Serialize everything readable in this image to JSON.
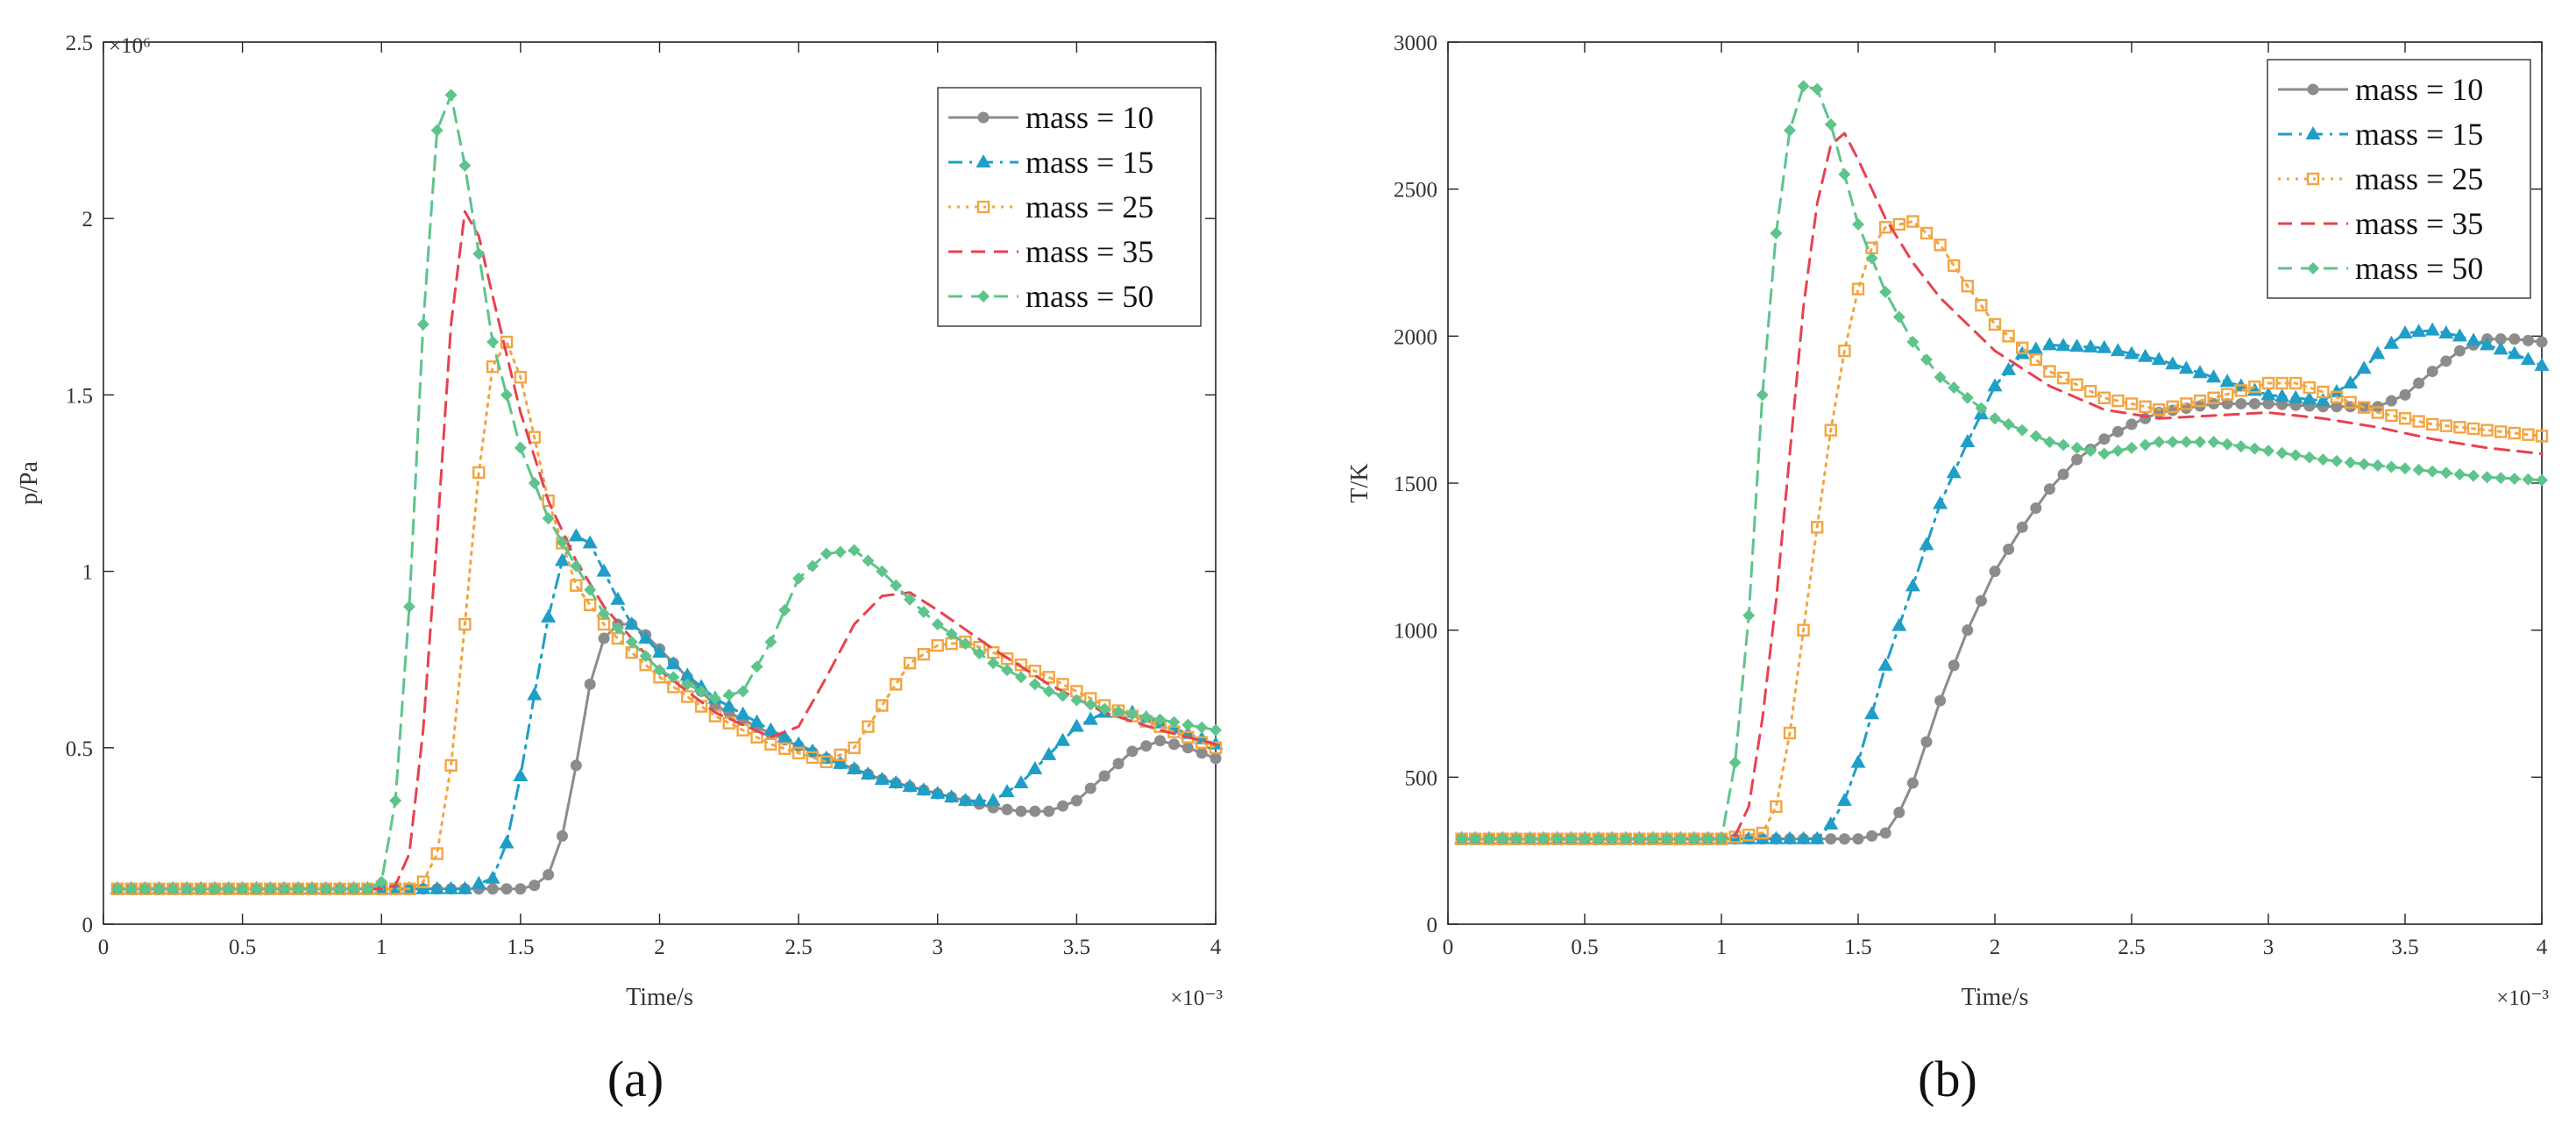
{
  "chart_data": [
    {
      "type": "line",
      "panel_label": "(a)",
      "xlabel": "Time/s",
      "ylabel": "p/Pa",
      "x_exponent": "×10⁻³",
      "y_exponent": "×10⁶",
      "xlim": [
        0,
        4
      ],
      "ylim": [
        0,
        2.5
      ],
      "xticks": [
        "0",
        "0.5",
        "1",
        "1.5",
        "2",
        "2.5",
        "3",
        "3.5",
        "4"
      ],
      "yticks": [
        "0",
        "0.5",
        "1",
        "1.5",
        "2",
        "2.5"
      ],
      "legend_position": "top-right",
      "series": [
        {
          "name": "mass = 10",
          "color": "#8c8c8c",
          "marker": "circle",
          "dash": "solid",
          "x": [
            0.05,
            0.5,
            1.0,
            1.4,
            1.5,
            1.55,
            1.6,
            1.65,
            1.7,
            1.75,
            1.8,
            1.85,
            1.9,
            1.95,
            2.0,
            2.1,
            2.2,
            2.4,
            2.6,
            2.8,
            3.0,
            3.1,
            3.2,
            3.3,
            3.4,
            3.5,
            3.6,
            3.7,
            3.8,
            3.9,
            4.0
          ],
          "y": [
            0.1,
            0.1,
            0.1,
            0.1,
            0.1,
            0.11,
            0.14,
            0.25,
            0.45,
            0.68,
            0.81,
            0.85,
            0.85,
            0.82,
            0.78,
            0.7,
            0.62,
            0.54,
            0.47,
            0.41,
            0.37,
            0.35,
            0.33,
            0.32,
            0.32,
            0.35,
            0.42,
            0.49,
            0.52,
            0.5,
            0.47
          ]
        },
        {
          "name": "mass = 15",
          "color": "#1f9ec7",
          "marker": "triangle",
          "dash": "dashdot",
          "x": [
            0.05,
            0.5,
            1.0,
            1.3,
            1.4,
            1.45,
            1.5,
            1.55,
            1.6,
            1.65,
            1.7,
            1.75,
            1.8,
            1.85,
            1.9,
            2.0,
            2.2,
            2.4,
            2.6,
            2.8,
            3.0,
            3.1,
            3.2,
            3.3,
            3.4,
            3.5,
            3.6,
            3.7,
            3.8,
            3.9,
            4.0
          ],
          "y": [
            0.1,
            0.1,
            0.1,
            0.1,
            0.13,
            0.23,
            0.42,
            0.65,
            0.87,
            1.03,
            1.1,
            1.08,
            1.0,
            0.92,
            0.85,
            0.77,
            0.64,
            0.55,
            0.47,
            0.41,
            0.37,
            0.35,
            0.35,
            0.4,
            0.48,
            0.56,
            0.6,
            0.6,
            0.57,
            0.54,
            0.51
          ]
        },
        {
          "name": "mass = 25",
          "color": "#f2a541",
          "marker": "square",
          "dash": "dotted",
          "x": [
            0.05,
            0.5,
            1.0,
            1.1,
            1.15,
            1.2,
            1.25,
            1.3,
            1.35,
            1.4,
            1.45,
            1.5,
            1.55,
            1.6,
            1.7,
            1.8,
            1.9,
            2.0,
            2.2,
            2.4,
            2.6,
            2.7,
            2.8,
            2.9,
            3.0,
            3.1,
            3.2,
            3.4,
            3.6,
            3.8,
            4.0
          ],
          "y": [
            0.1,
            0.1,
            0.1,
            0.1,
            0.12,
            0.2,
            0.45,
            0.85,
            1.28,
            1.58,
            1.65,
            1.55,
            1.38,
            1.2,
            0.96,
            0.85,
            0.77,
            0.7,
            0.59,
            0.51,
            0.46,
            0.5,
            0.62,
            0.74,
            0.79,
            0.8,
            0.77,
            0.7,
            0.62,
            0.56,
            0.5
          ]
        },
        {
          "name": "mass = 35",
          "color": "#e8424f",
          "marker": "none",
          "dash": "dashed",
          "x": [
            0.05,
            0.5,
            1.0,
            1.05,
            1.1,
            1.15,
            1.2,
            1.25,
            1.3,
            1.35,
            1.4,
            1.5,
            1.6,
            1.7,
            1.8,
            2.0,
            2.2,
            2.4,
            2.5,
            2.6,
            2.7,
            2.8,
            2.9,
            3.0,
            3.2,
            3.4,
            3.6,
            3.8,
            4.0
          ],
          "y": [
            0.1,
            0.1,
            0.1,
            0.11,
            0.2,
            0.55,
            1.1,
            1.7,
            2.02,
            1.95,
            1.78,
            1.45,
            1.2,
            1.03,
            0.9,
            0.72,
            0.6,
            0.53,
            0.56,
            0.7,
            0.85,
            0.93,
            0.94,
            0.89,
            0.78,
            0.68,
            0.6,
            0.55,
            0.51
          ]
        },
        {
          "name": "mass = 50",
          "color": "#5ec48c",
          "marker": "diamond",
          "dash": "dashed",
          "x": [
            0.05,
            0.5,
            0.95,
            1.0,
            1.05,
            1.1,
            1.15,
            1.2,
            1.25,
            1.3,
            1.35,
            1.4,
            1.5,
            1.6,
            1.8,
            2.0,
            2.2,
            2.3,
            2.4,
            2.5,
            2.6,
            2.7,
            2.8,
            2.9,
            3.0,
            3.2,
            3.4,
            3.6,
            3.8,
            4.0
          ],
          "y": [
            0.1,
            0.1,
            0.1,
            0.12,
            0.35,
            0.9,
            1.7,
            2.25,
            2.35,
            2.15,
            1.9,
            1.65,
            1.35,
            1.15,
            0.88,
            0.72,
            0.64,
            0.66,
            0.8,
            0.98,
            1.05,
            1.06,
            1.0,
            0.92,
            0.85,
            0.74,
            0.66,
            0.61,
            0.58,
            0.55
          ]
        }
      ]
    },
    {
      "type": "line",
      "panel_label": "(b)",
      "xlabel": "Time/s",
      "ylabel": "T/K",
      "x_exponent": "×10⁻³",
      "xlim": [
        0,
        4
      ],
      "ylim": [
        0,
        3000
      ],
      "xticks": [
        "0",
        "0.5",
        "1",
        "1.5",
        "2",
        "2.5",
        "3",
        "3.5",
        "4"
      ],
      "yticks": [
        "0",
        "500",
        "1000",
        "1500",
        "2000",
        "2500",
        "3000"
      ],
      "legend_position": "top-right",
      "series": [
        {
          "name": "mass = 10",
          "color": "#8c8c8c",
          "marker": "circle",
          "dash": "solid",
          "x": [
            0.05,
            0.5,
            1.0,
            1.5,
            1.6,
            1.65,
            1.7,
            1.8,
            1.9,
            2.0,
            2.1,
            2.2,
            2.3,
            2.4,
            2.5,
            2.6,
            2.8,
            3.0,
            3.2,
            3.4,
            3.5,
            3.6,
            3.7,
            3.8,
            3.9,
            4.0
          ],
          "y": [
            290,
            290,
            290,
            290,
            310,
            380,
            480,
            760,
            1000,
            1200,
            1350,
            1480,
            1580,
            1650,
            1700,
            1740,
            1770,
            1770,
            1760,
            1760,
            1800,
            1880,
            1950,
            1990,
            1990,
            1980
          ]
        },
        {
          "name": "mass = 15",
          "color": "#1f9ec7",
          "marker": "triangle",
          "dash": "dashdot",
          "x": [
            0.05,
            0.5,
            1.0,
            1.35,
            1.4,
            1.45,
            1.5,
            1.6,
            1.7,
            1.8,
            1.9,
            2.0,
            2.1,
            2.2,
            2.4,
            2.6,
            2.8,
            3.0,
            3.2,
            3.3,
            3.4,
            3.5,
            3.6,
            3.7,
            3.8,
            3.9,
            4.0
          ],
          "y": [
            290,
            290,
            290,
            290,
            340,
            420,
            550,
            880,
            1150,
            1430,
            1640,
            1830,
            1940,
            1970,
            1960,
            1920,
            1860,
            1800,
            1780,
            1840,
            1940,
            2010,
            2020,
            2000,
            1970,
            1940,
            1900
          ]
        },
        {
          "name": "mass = 25",
          "color": "#f2a541",
          "marker": "square",
          "dash": "dotted",
          "x": [
            0.05,
            0.5,
            1.0,
            1.15,
            1.2,
            1.25,
            1.3,
            1.35,
            1.4,
            1.45,
            1.5,
            1.55,
            1.6,
            1.7,
            1.8,
            1.9,
            2.0,
            2.2,
            2.4,
            2.6,
            2.8,
            3.0,
            3.1,
            3.2,
            3.4,
            3.6,
            3.8,
            4.0
          ],
          "y": [
            290,
            290,
            290,
            310,
            400,
            650,
            1000,
            1350,
            1680,
            1950,
            2160,
            2300,
            2370,
            2390,
            2310,
            2170,
            2040,
            1880,
            1790,
            1750,
            1790,
            1840,
            1840,
            1810,
            1740,
            1700,
            1680,
            1660
          ]
        },
        {
          "name": "mass = 35",
          "color": "#e8424f",
          "marker": "none",
          "dash": "dashed",
          "x": [
            0.05,
            0.5,
            1.0,
            1.05,
            1.1,
            1.15,
            1.2,
            1.25,
            1.3,
            1.35,
            1.4,
            1.45,
            1.5,
            1.6,
            1.7,
            1.8,
            2.0,
            2.2,
            2.4,
            2.6,
            2.8,
            3.0,
            3.2,
            3.4,
            3.6,
            3.8,
            4.0
          ],
          "y": [
            290,
            290,
            290,
            300,
            400,
            700,
            1100,
            1600,
            2100,
            2450,
            2650,
            2690,
            2600,
            2400,
            2250,
            2130,
            1950,
            1830,
            1750,
            1720,
            1730,
            1740,
            1720,
            1690,
            1650,
            1620,
            1600
          ]
        },
        {
          "name": "mass = 50",
          "color": "#5ec48c",
          "marker": "diamond",
          "dash": "dashed",
          "x": [
            0.05,
            0.5,
            1.0,
            1.05,
            1.1,
            1.15,
            1.2,
            1.25,
            1.3,
            1.35,
            1.4,
            1.45,
            1.5,
            1.6,
            1.7,
            1.8,
            2.0,
            2.2,
            2.4,
            2.6,
            2.8,
            3.0,
            3.2,
            3.4,
            3.6,
            3.8,
            4.0
          ],
          "y": [
            290,
            290,
            290,
            550,
            1050,
            1800,
            2350,
            2700,
            2850,
            2840,
            2720,
            2550,
            2380,
            2150,
            1980,
            1860,
            1720,
            1640,
            1600,
            1640,
            1640,
            1610,
            1580,
            1560,
            1540,
            1520,
            1510
          ]
        }
      ]
    }
  ]
}
